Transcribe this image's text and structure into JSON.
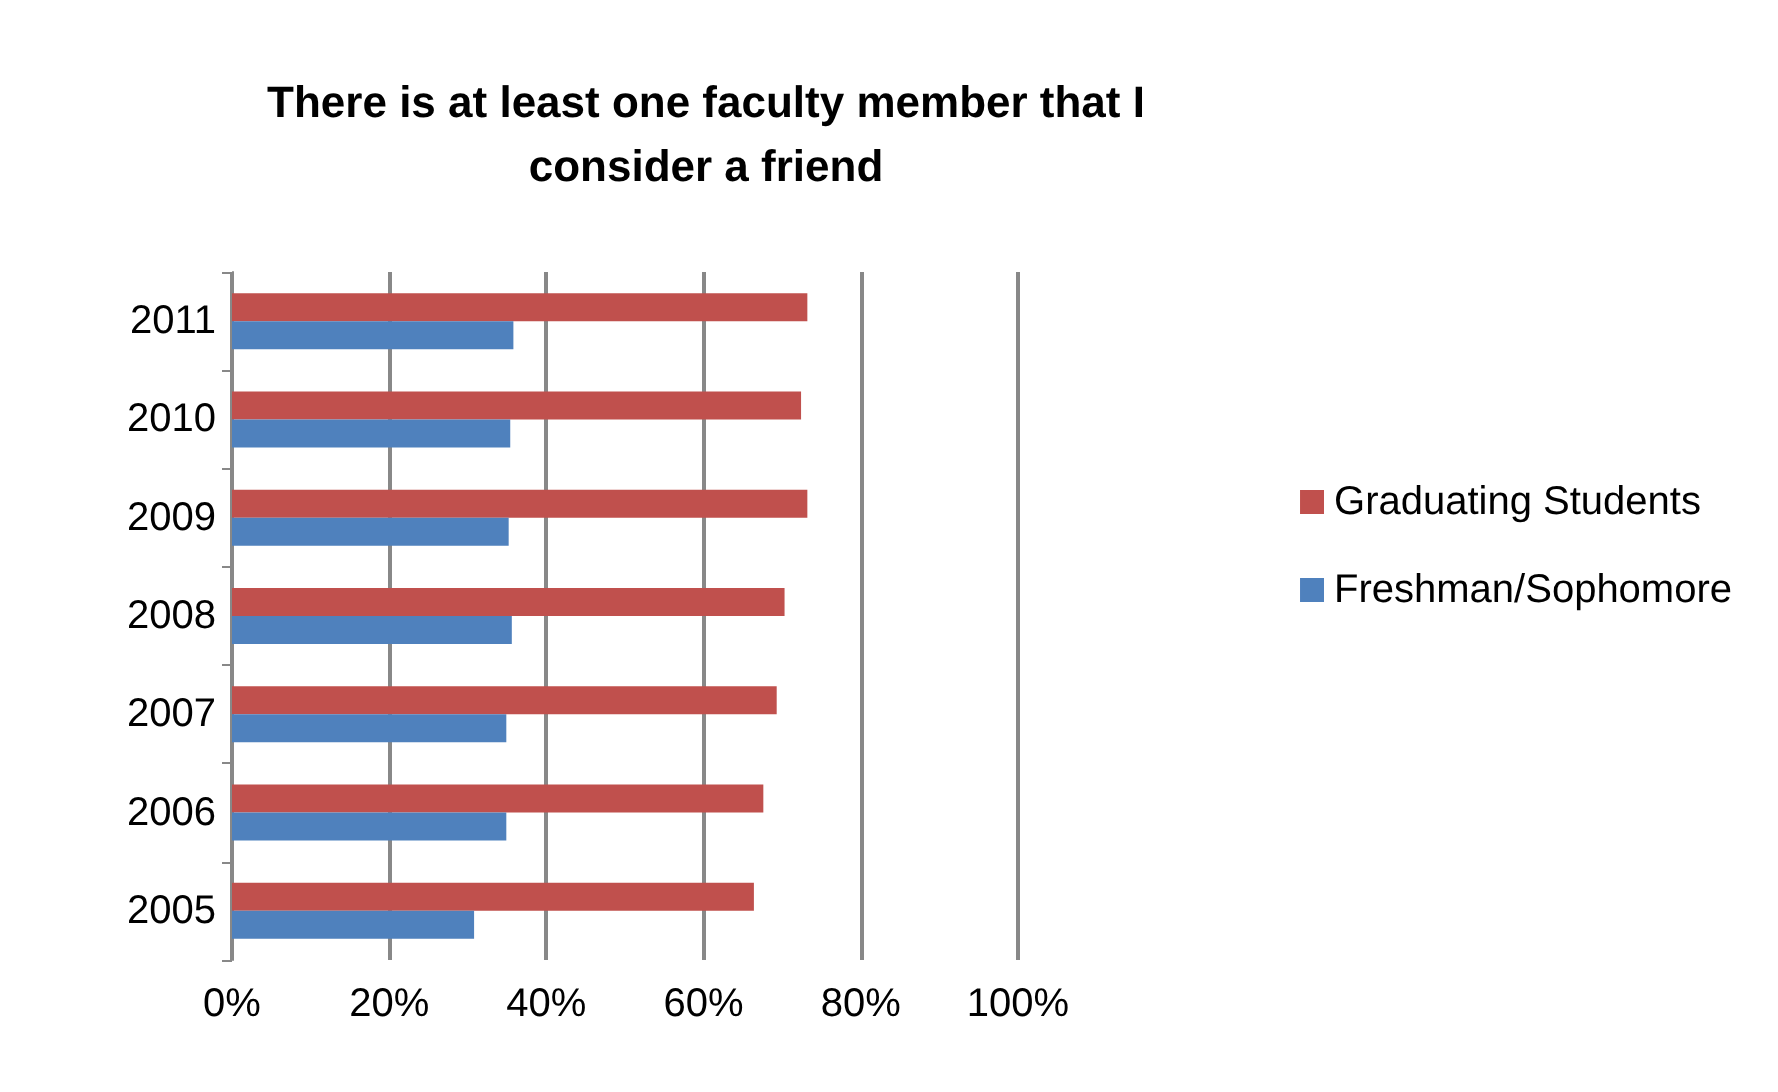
{
  "chart_data": {
    "type": "bar",
    "orientation": "horizontal",
    "title": "There is at least one faculty member that I\nconsider a friend",
    "categories": [
      "2011",
      "2010",
      "2009",
      "2008",
      "2007",
      "2006",
      "2005"
    ],
    "series": [
      {
        "name": "Graduating Students",
        "color": "#c0504d",
        "values": [
          73.2,
          72.4,
          73.2,
          70.3,
          69.3,
          67.6,
          66.4
        ]
      },
      {
        "name": "Freshman/Sophomore",
        "color": "#4f81bd",
        "values": [
          35.8,
          35.4,
          35.2,
          35.6,
          34.9,
          34.9,
          30.8
        ]
      }
    ],
    "xlim": [
      0,
      100
    ],
    "xticks": [
      {
        "value": 0,
        "label": "0%"
      },
      {
        "value": 20,
        "label": "20%"
      },
      {
        "value": 40,
        "label": "40%"
      },
      {
        "value": 60,
        "label": "60%"
      },
      {
        "value": 80,
        "label": "80%"
      },
      {
        "value": 100,
        "label": "100%"
      }
    ],
    "grid": "x",
    "legend": "right"
  }
}
